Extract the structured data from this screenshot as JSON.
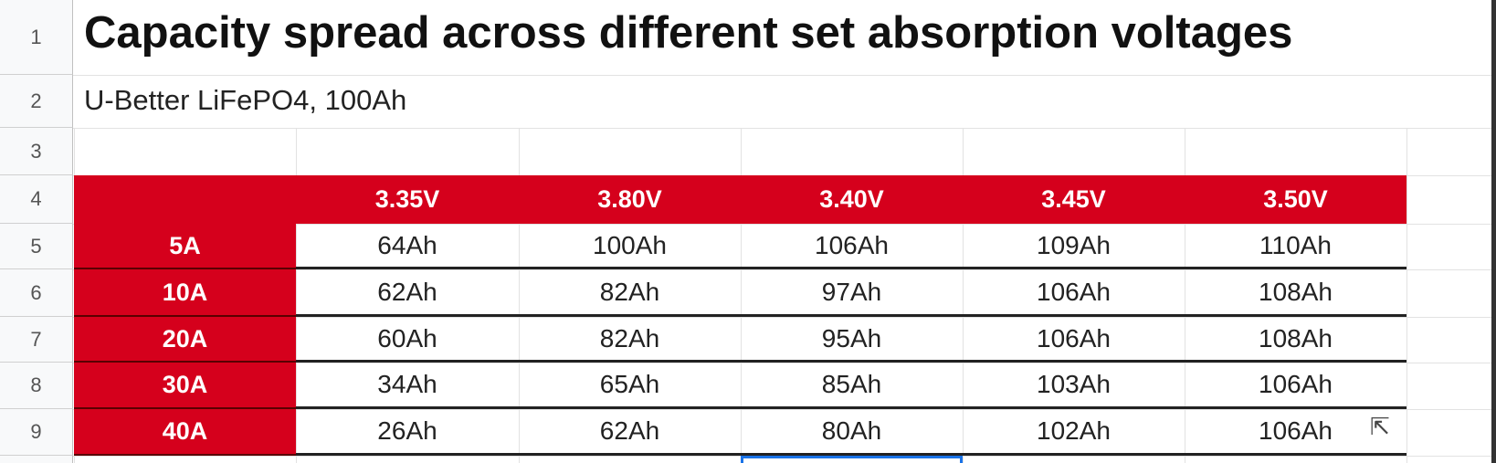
{
  "title": "Capacity spread across different set absorption voltages",
  "subtitle": "U-Better LiFePO4, 100Ah",
  "row_numbers": [
    "1",
    "2",
    "3",
    "4",
    "5",
    "6",
    "7",
    "8",
    "9"
  ],
  "table": {
    "columns": [
      "3.35V",
      "3.80V",
      "3.40V",
      "3.45V",
      "3.50V"
    ],
    "rows": [
      {
        "label": "5A",
        "values": [
          "64Ah",
          "100Ah",
          "106Ah",
          "109Ah",
          "110Ah"
        ]
      },
      {
        "label": "10A",
        "values": [
          "62Ah",
          "82Ah",
          "97Ah",
          "106Ah",
          "108Ah"
        ]
      },
      {
        "label": "20A",
        "values": [
          "60Ah",
          "82Ah",
          "95Ah",
          "106Ah",
          "108Ah"
        ]
      },
      {
        "label": "30A",
        "values": [
          "34Ah",
          "65Ah",
          "85Ah",
          "103Ah",
          "106Ah"
        ]
      },
      {
        "label": "40A",
        "values": [
          "26Ah",
          "62Ah",
          "80Ah",
          "102Ah",
          "106Ah"
        ]
      }
    ]
  },
  "colors": {
    "header_red": "#d5001c",
    "selection": "#1a73e8"
  }
}
